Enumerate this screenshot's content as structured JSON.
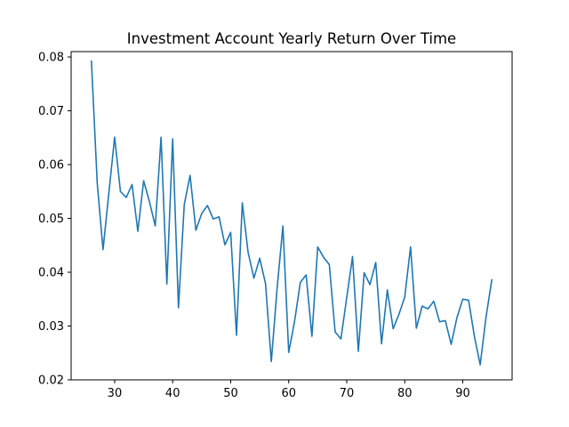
{
  "chart_data": {
    "type": "line",
    "title": "Investment Account Yearly Return Over Time",
    "xlabel": "",
    "ylabel": "",
    "xlim": [
      22.5,
      98.5
    ],
    "ylim": [
      0.02,
      0.081
    ],
    "xticks": [
      30,
      40,
      50,
      60,
      70,
      80,
      90
    ],
    "yticks": [
      0.02,
      0.03,
      0.04,
      0.05,
      0.06,
      0.07,
      0.08
    ],
    "xtick_labels": [
      "30",
      "40",
      "50",
      "60",
      "70",
      "80",
      "90"
    ],
    "ytick_labels": [
      "0.02",
      "0.03",
      "0.04",
      "0.05",
      "0.06",
      "0.07",
      "0.08"
    ],
    "grid": false,
    "series": [
      {
        "color": "#1f77b4",
        "x": [
          26,
          27,
          28,
          29,
          30,
          31,
          32,
          33,
          34,
          35,
          36,
          37,
          38,
          39,
          40,
          41,
          42,
          43,
          44,
          45,
          46,
          47,
          48,
          49,
          50,
          51,
          52,
          53,
          54,
          55,
          56,
          57,
          58,
          59,
          60,
          61,
          62,
          63,
          64,
          65,
          66,
          67,
          68,
          69,
          70,
          71,
          72,
          73,
          74,
          75,
          76,
          77,
          78,
          79,
          80,
          81,
          82,
          83,
          84,
          85,
          86,
          87,
          88,
          89,
          90,
          91,
          92,
          93,
          94,
          95
        ],
        "y": [
          0.0792,
          0.0565,
          0.0442,
          0.0547,
          0.0651,
          0.055,
          0.0539,
          0.0563,
          0.0476,
          0.057,
          0.0531,
          0.0486,
          0.0651,
          0.0378,
          0.0648,
          0.0334,
          0.0526,
          0.058,
          0.0478,
          0.0509,
          0.0524,
          0.0499,
          0.0503,
          0.0451,
          0.0474,
          0.0283,
          0.0529,
          0.0437,
          0.0389,
          0.0426,
          0.0379,
          0.0234,
          0.037,
          0.0486,
          0.0251,
          0.0308,
          0.0381,
          0.0395,
          0.0281,
          0.0447,
          0.0428,
          0.0414,
          0.0289,
          0.0276,
          0.0353,
          0.0429,
          0.0253,
          0.0399,
          0.0377,
          0.0418,
          0.0267,
          0.0367,
          0.0295,
          0.0322,
          0.0354,
          0.0447,
          0.0296,
          0.0337,
          0.0332,
          0.0346,
          0.0308,
          0.031,
          0.0266,
          0.0316,
          0.035,
          0.0348,
          0.0281,
          0.0228,
          0.0316,
          0.0386
        ]
      }
    ]
  }
}
